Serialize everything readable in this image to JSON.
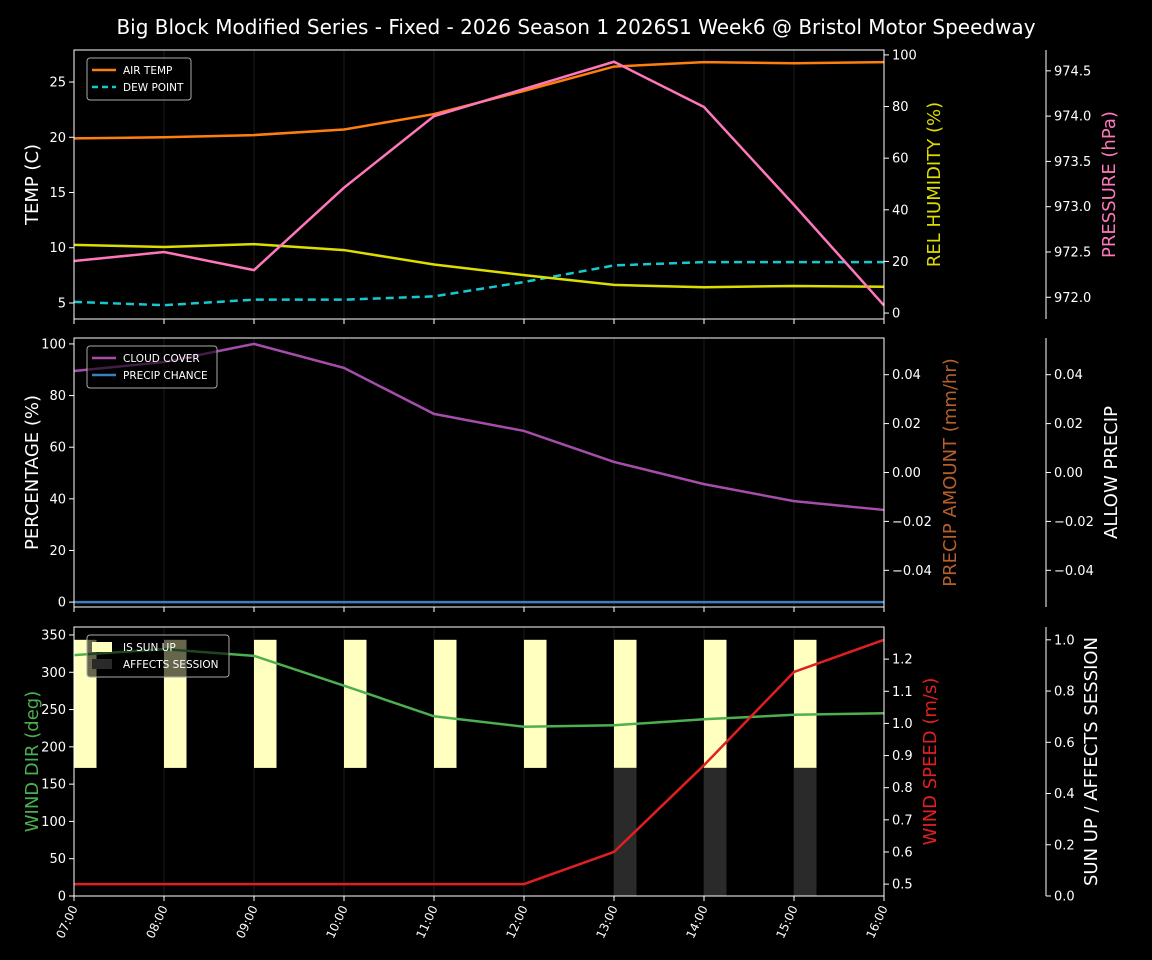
{
  "title": "Big Block Modified Series - Fixed - 2026 Season 1 2026S1 Week6 @ Bristol Motor Speedway",
  "chart_data": [
    {
      "type": "line",
      "x": [
        "07:00",
        "08:00",
        "09:00",
        "10:00",
        "11:00",
        "12:00",
        "13:00",
        "14:00",
        "15:00",
        "16:00"
      ],
      "grid": "vertical",
      "legend_position": "upper-left",
      "axes": [
        {
          "side": "left",
          "label": "TEMP (C)",
          "label_color": "#ffffff",
          "ylim": [
            3.55,
            27.9
          ],
          "ticks": [
            5,
            10,
            15,
            20,
            25
          ]
        },
        {
          "side": "right",
          "label": "REL HUMIDITY (%)",
          "label_color": "#dddd00",
          "ylim": [
            -2.3,
            101.9
          ],
          "ticks": [
            0,
            20,
            40,
            60,
            80,
            100
          ]
        },
        {
          "side": "right-outer",
          "label": "PRESSURE (hPa)",
          "label_color": "#ff77bb",
          "ylim": [
            971.76,
            974.73
          ],
          "ticks": [
            "972.0",
            "972.5",
            "973.0",
            "973.5",
            "974.0",
            "974.5"
          ]
        }
      ],
      "series": [
        {
          "name": "AIR TEMP",
          "axis": 0,
          "color": "#ff7f0e",
          "dash": false,
          "legend": true,
          "values": [
            19.9,
            20.0,
            20.2,
            20.7,
            22.1,
            24.2,
            26.4,
            26.8,
            26.7,
            26.8
          ]
        },
        {
          "name": "DEW POINT",
          "axis": 0,
          "color": "#17c8d0",
          "dash": true,
          "legend": true,
          "values": [
            5.1,
            4.8,
            5.3,
            5.3,
            5.6,
            6.9,
            8.4,
            8.7,
            8.7,
            8.7
          ]
        },
        {
          "axis": 1,
          "color": "#dddd00",
          "dash": false,
          "legend": false,
          "values": [
            26.4,
            25.6,
            26.7,
            24.4,
            18.8,
            14.7,
            10.9,
            10.0,
            10.5,
            10.2
          ]
        },
        {
          "axis": 2,
          "color": "#ff77bb",
          "dash": false,
          "legend": false,
          "values": [
            972.4,
            972.5,
            972.3,
            973.21,
            974.0,
            974.3,
            974.6,
            974.1,
            973.02,
            971.91
          ]
        }
      ]
    },
    {
      "type": "line",
      "x": [
        "07:00",
        "08:00",
        "09:00",
        "10:00",
        "11:00",
        "12:00",
        "13:00",
        "14:00",
        "15:00",
        "16:00"
      ],
      "grid": "vertical",
      "legend_position": "upper-left",
      "axes": [
        {
          "side": "left",
          "label": "PERCENTAGE (%)",
          "label_color": "#ffffff",
          "ylim": [
            -1.9,
            102.3
          ],
          "ticks": [
            0,
            20,
            40,
            60,
            80,
            100
          ]
        },
        {
          "side": "right",
          "label": "PRECIP AMOUNT (mm/hr)",
          "label_color": "#b5602a",
          "ylim": [
            -0.055,
            0.055
          ],
          "ticks": [
            "−0.04",
            "−0.02",
            "0.00",
            "0.02",
            "0.04"
          ]
        },
        {
          "side": "right-outer",
          "label": "ALLOW PRECIP",
          "label_color": "#ffffff",
          "ylim": [
            -0.055,
            0.055
          ],
          "ticks": [
            "−0.04",
            "−0.02",
            "0.00",
            "0.02",
            "0.04"
          ]
        }
      ],
      "series": [
        {
          "name": "CLOUD COVER",
          "axis": 0,
          "color": "#a64dab",
          "dash": false,
          "legend": true,
          "values": [
            89.5,
            93,
            100,
            90.7,
            72.9,
            66.3,
            54.3,
            45.7,
            39.1,
            35.7
          ]
        },
        {
          "name": "PRECIP CHANCE",
          "axis": 0,
          "color": "#3a7fc0",
          "dash": false,
          "legend": true,
          "values": [
            0,
            0,
            0,
            0,
            0,
            0,
            0,
            0,
            0,
            0
          ]
        }
      ]
    },
    {
      "type": "line+bar",
      "x": [
        "07:00",
        "08:00",
        "09:00",
        "10:00",
        "11:00",
        "12:00",
        "13:00",
        "14:00",
        "15:00",
        "16:00"
      ],
      "grid": "vertical",
      "legend_position": "upper-left",
      "axes": [
        {
          "side": "left",
          "label": "WIND DIR (deg)",
          "label_color": "#4caf50",
          "ylim": [
            0,
            360.7
          ],
          "ticks": [
            0,
            50,
            100,
            150,
            200,
            250,
            300,
            350
          ]
        },
        {
          "side": "right",
          "label": "WIND SPEED (m/s)",
          "label_color": "#e02020",
          "ylim": [
            0.463,
            1.3
          ],
          "ticks": [
            "0.5",
            "0.6",
            "0.7",
            "0.8",
            "0.9",
            "1.0",
            "1.1",
            "1.2"
          ]
        },
        {
          "side": "right-outer",
          "label": "SUN UP / AFFECTS SESSION",
          "label_color": "#ffffff",
          "ylim": [
            0,
            1.05
          ],
          "ticks": [
            "0.0",
            "0.2",
            "0.4",
            "0.6",
            "0.8",
            "1.0"
          ]
        }
      ],
      "bars": [
        {
          "name": "IS SUN UP",
          "axis": 2,
          "color": "#ffffc0",
          "base": 0.5,
          "height": 0.5,
          "values": [
            1,
            1,
            1,
            1,
            1,
            1,
            1,
            1,
            1,
            0
          ]
        },
        {
          "name": "AFFECTS SESSION",
          "axis": 2,
          "color": "#2a2a2a",
          "base": 0,
          "height": 0.5,
          "values": [
            0,
            0,
            0,
            0,
            0,
            0,
            1,
            1,
            1,
            0
          ]
        }
      ],
      "series": [
        {
          "axis": 0,
          "color": "#4caf50",
          "dash": false,
          "legend": false,
          "values": [
            323,
            331,
            322,
            282,
            241,
            227,
            229,
            237,
            243,
            245
          ]
        },
        {
          "axis": 1,
          "color": "#e02020",
          "dash": false,
          "legend": false,
          "values": [
            0.5,
            0.5,
            0.5,
            0.5,
            0.5,
            0.5,
            0.6,
            0.87,
            1.16,
            1.26
          ]
        }
      ]
    }
  ]
}
